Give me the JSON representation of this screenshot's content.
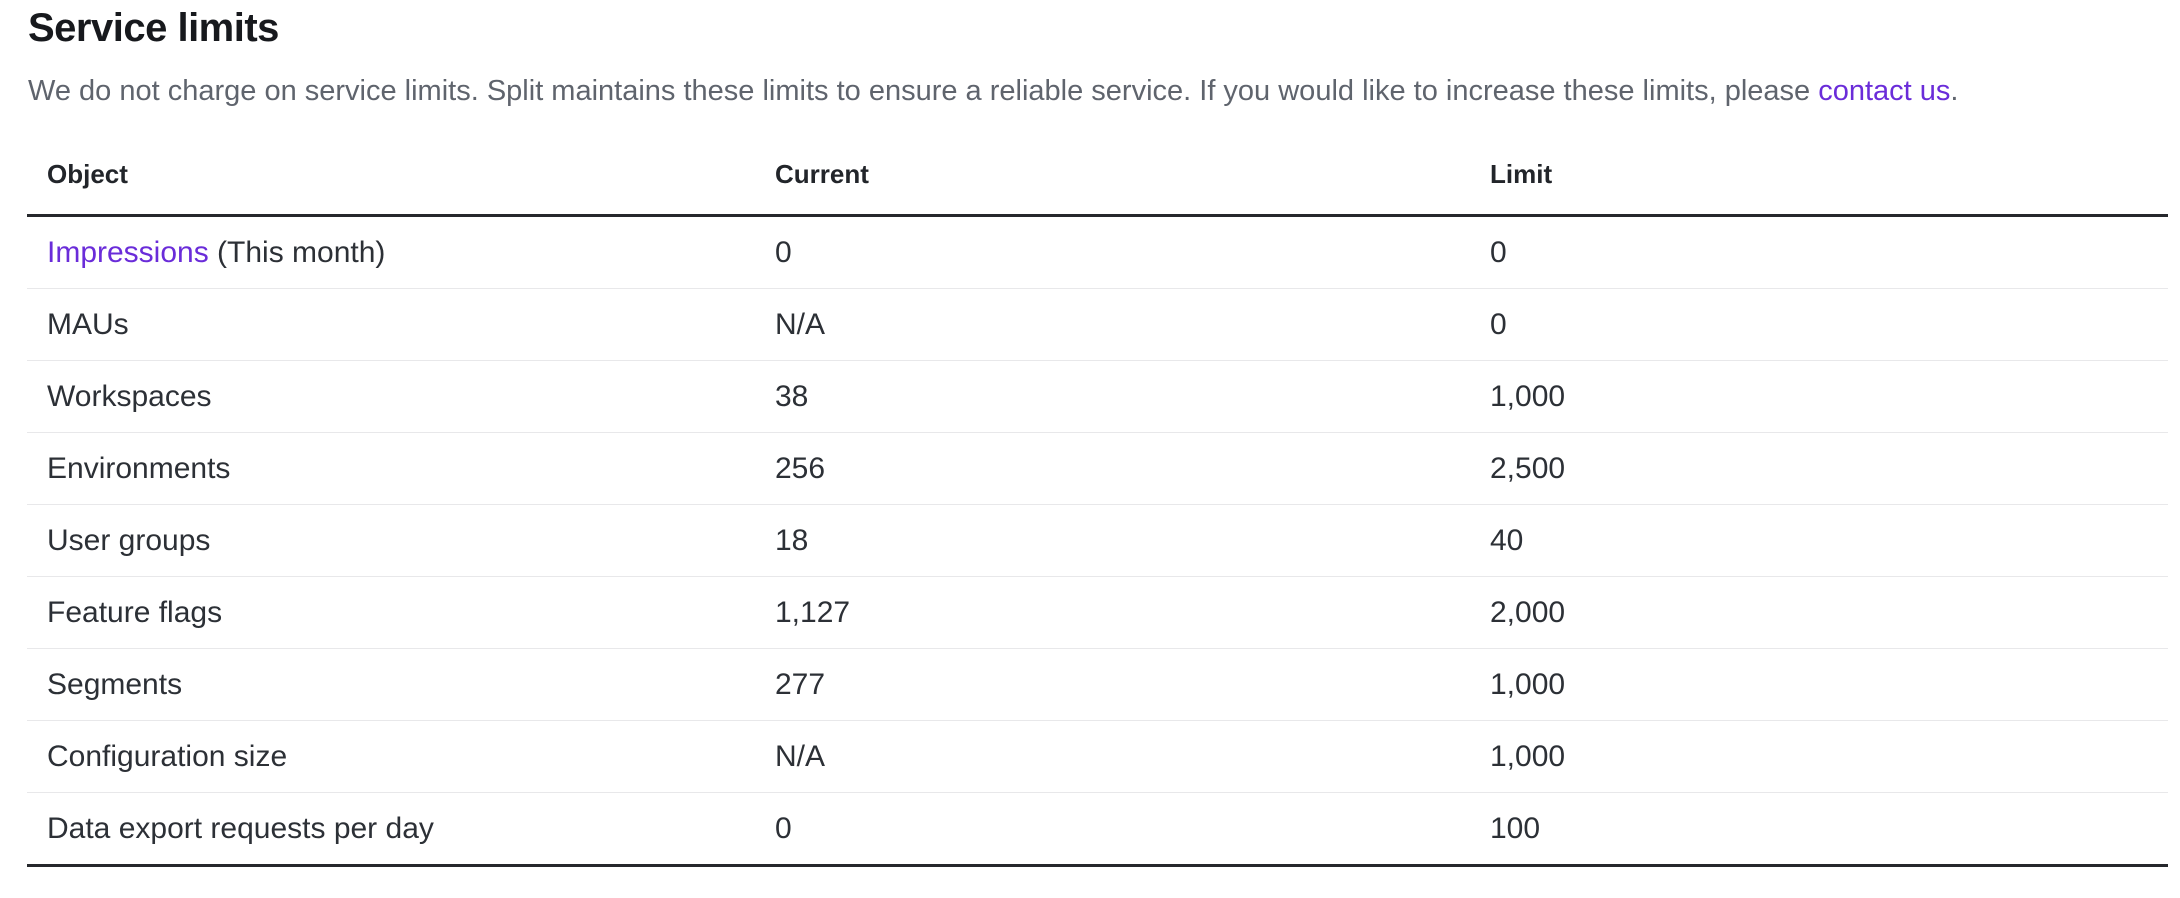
{
  "page": {
    "title": "Service limits",
    "subtitle_before_link": "We do not charge on service limits. Split maintains these limits to ensure a reliable service. If you would like to increase these limits, please ",
    "subtitle_link": "contact us",
    "subtitle_after_link": "."
  },
  "colors": {
    "link_purple": "#6A2CD9",
    "title_text": "#17191D",
    "subtitle_text": "#5F646D",
    "header_text": "#22252A",
    "body_text": "#2C3036",
    "strong_border": "#26282C",
    "row_divider": "#E8E8EA",
    "background": "#FFFFFF"
  },
  "table": {
    "columns": [
      "Object",
      "Current",
      "Limit"
    ],
    "rows": [
      {
        "object_link": "Impressions",
        "object_suffix": " (This month)",
        "current": "0",
        "limit": "0"
      },
      {
        "object": "MAUs",
        "current": "N/A",
        "limit": "0"
      },
      {
        "object": "Workspaces",
        "current": "38",
        "limit": "1,000"
      },
      {
        "object": "Environments",
        "current": "256",
        "limit": "2,500"
      },
      {
        "object": "User groups",
        "current": "18",
        "limit": "40"
      },
      {
        "object": "Feature flags",
        "current": "1,127",
        "limit": "2,000"
      },
      {
        "object": "Segments",
        "current": "277",
        "limit": "1,000"
      },
      {
        "object": "Configuration size",
        "current": "N/A",
        "limit": "1,000"
      },
      {
        "object": "Data export requests per day",
        "current": "0",
        "limit": "100"
      }
    ]
  }
}
